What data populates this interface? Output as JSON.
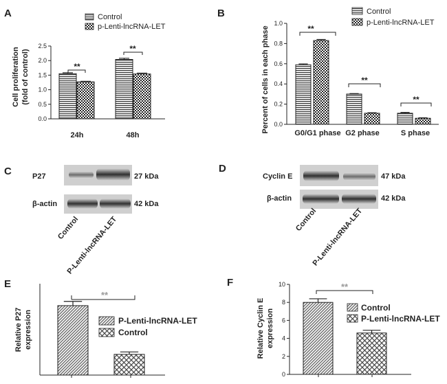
{
  "panels": {
    "A": "A",
    "B": "B",
    "C": "C",
    "D": "D",
    "E": "E",
    "F": "F"
  },
  "chart_data": [
    {
      "id": "A",
      "type": "bar",
      "categories": [
        "24h",
        "48h"
      ],
      "series": [
        {
          "name": "Control",
          "values": [
            1.55,
            2.04
          ],
          "errors": [
            0.03,
            0.04
          ]
        },
        {
          "name": "p-Lenti-lncRNA-LET",
          "values": [
            1.27,
            1.54
          ],
          "errors": [
            0.02,
            0.03
          ]
        }
      ],
      "ylabel_line1": "Cell proliferation",
      "ylabel_line2": "(fold of control)",
      "ylim": [
        0,
        2.5
      ],
      "yticks": [
        "0.0",
        "0.5",
        "1.0",
        "1.5",
        "2.0",
        "2.5"
      ],
      "significance": [
        "**",
        "**"
      ],
      "legend_position": "top-left"
    },
    {
      "id": "B",
      "type": "bar",
      "categories": [
        "G0/G1 phase",
        "G2 phase",
        "S phase"
      ],
      "series": [
        {
          "name": "Control",
          "values": [
            0.59,
            0.3,
            0.11
          ],
          "errors": [
            0.008,
            0.005,
            0.008
          ]
        },
        {
          "name": "p-Lenti-lncRNA-LET",
          "values": [
            0.83,
            0.11,
            0.06
          ],
          "errors": [
            0.01,
            0.005,
            0.005
          ]
        }
      ],
      "ylabel": "Percent of cells in each phase",
      "ylim": [
        0,
        1.0
      ],
      "yticks": [
        "0.0",
        "0.2",
        "0.4",
        "0.6",
        "0.8",
        "1.0"
      ],
      "significance": [
        "**",
        "**",
        "**"
      ],
      "legend_position": "top-right"
    },
    {
      "id": "E",
      "type": "bar",
      "categories": [
        "P-Lenti-lncRNA-LET",
        "Control"
      ],
      "values": [
        11.4,
        3.4
      ],
      "errors": [
        0.7,
        0.4
      ],
      "ylabel_line1": "Relative P27",
      "ylabel_line2": "expression",
      "ylim": [
        0,
        15
      ],
      "yticks": [],
      "significance": "**",
      "legend_position": "right"
    },
    {
      "id": "F",
      "type": "bar",
      "categories": [
        "Control",
        "P-Lenti-lncRNA-LET"
      ],
      "values": [
        8.0,
        4.6
      ],
      "errors": [
        0.4,
        0.3
      ],
      "ylabel_line1": "Relative Cyclin E",
      "ylabel_line2": "expression",
      "ylim": [
        0,
        10
      ],
      "yticks": [
        "0",
        "2",
        "4",
        "6",
        "8",
        "10"
      ],
      "significance": "**",
      "legend_position": "top-right"
    }
  ],
  "blots": {
    "C": {
      "rows": [
        {
          "name": "P27",
          "kda": "27 kDa"
        },
        {
          "name": "β-actin",
          "kda": "42 kDa"
        }
      ],
      "lanes": [
        "Control",
        "P-Lenti-lncRNA-LET"
      ]
    },
    "D": {
      "rows": [
        {
          "name": "Cyclin E",
          "kda": "47 kDa"
        },
        {
          "name": "β-actin",
          "kda": "42 kDa"
        }
      ],
      "lanes": [
        "Control",
        "P-Lenti-lncRNA-LET"
      ]
    }
  }
}
